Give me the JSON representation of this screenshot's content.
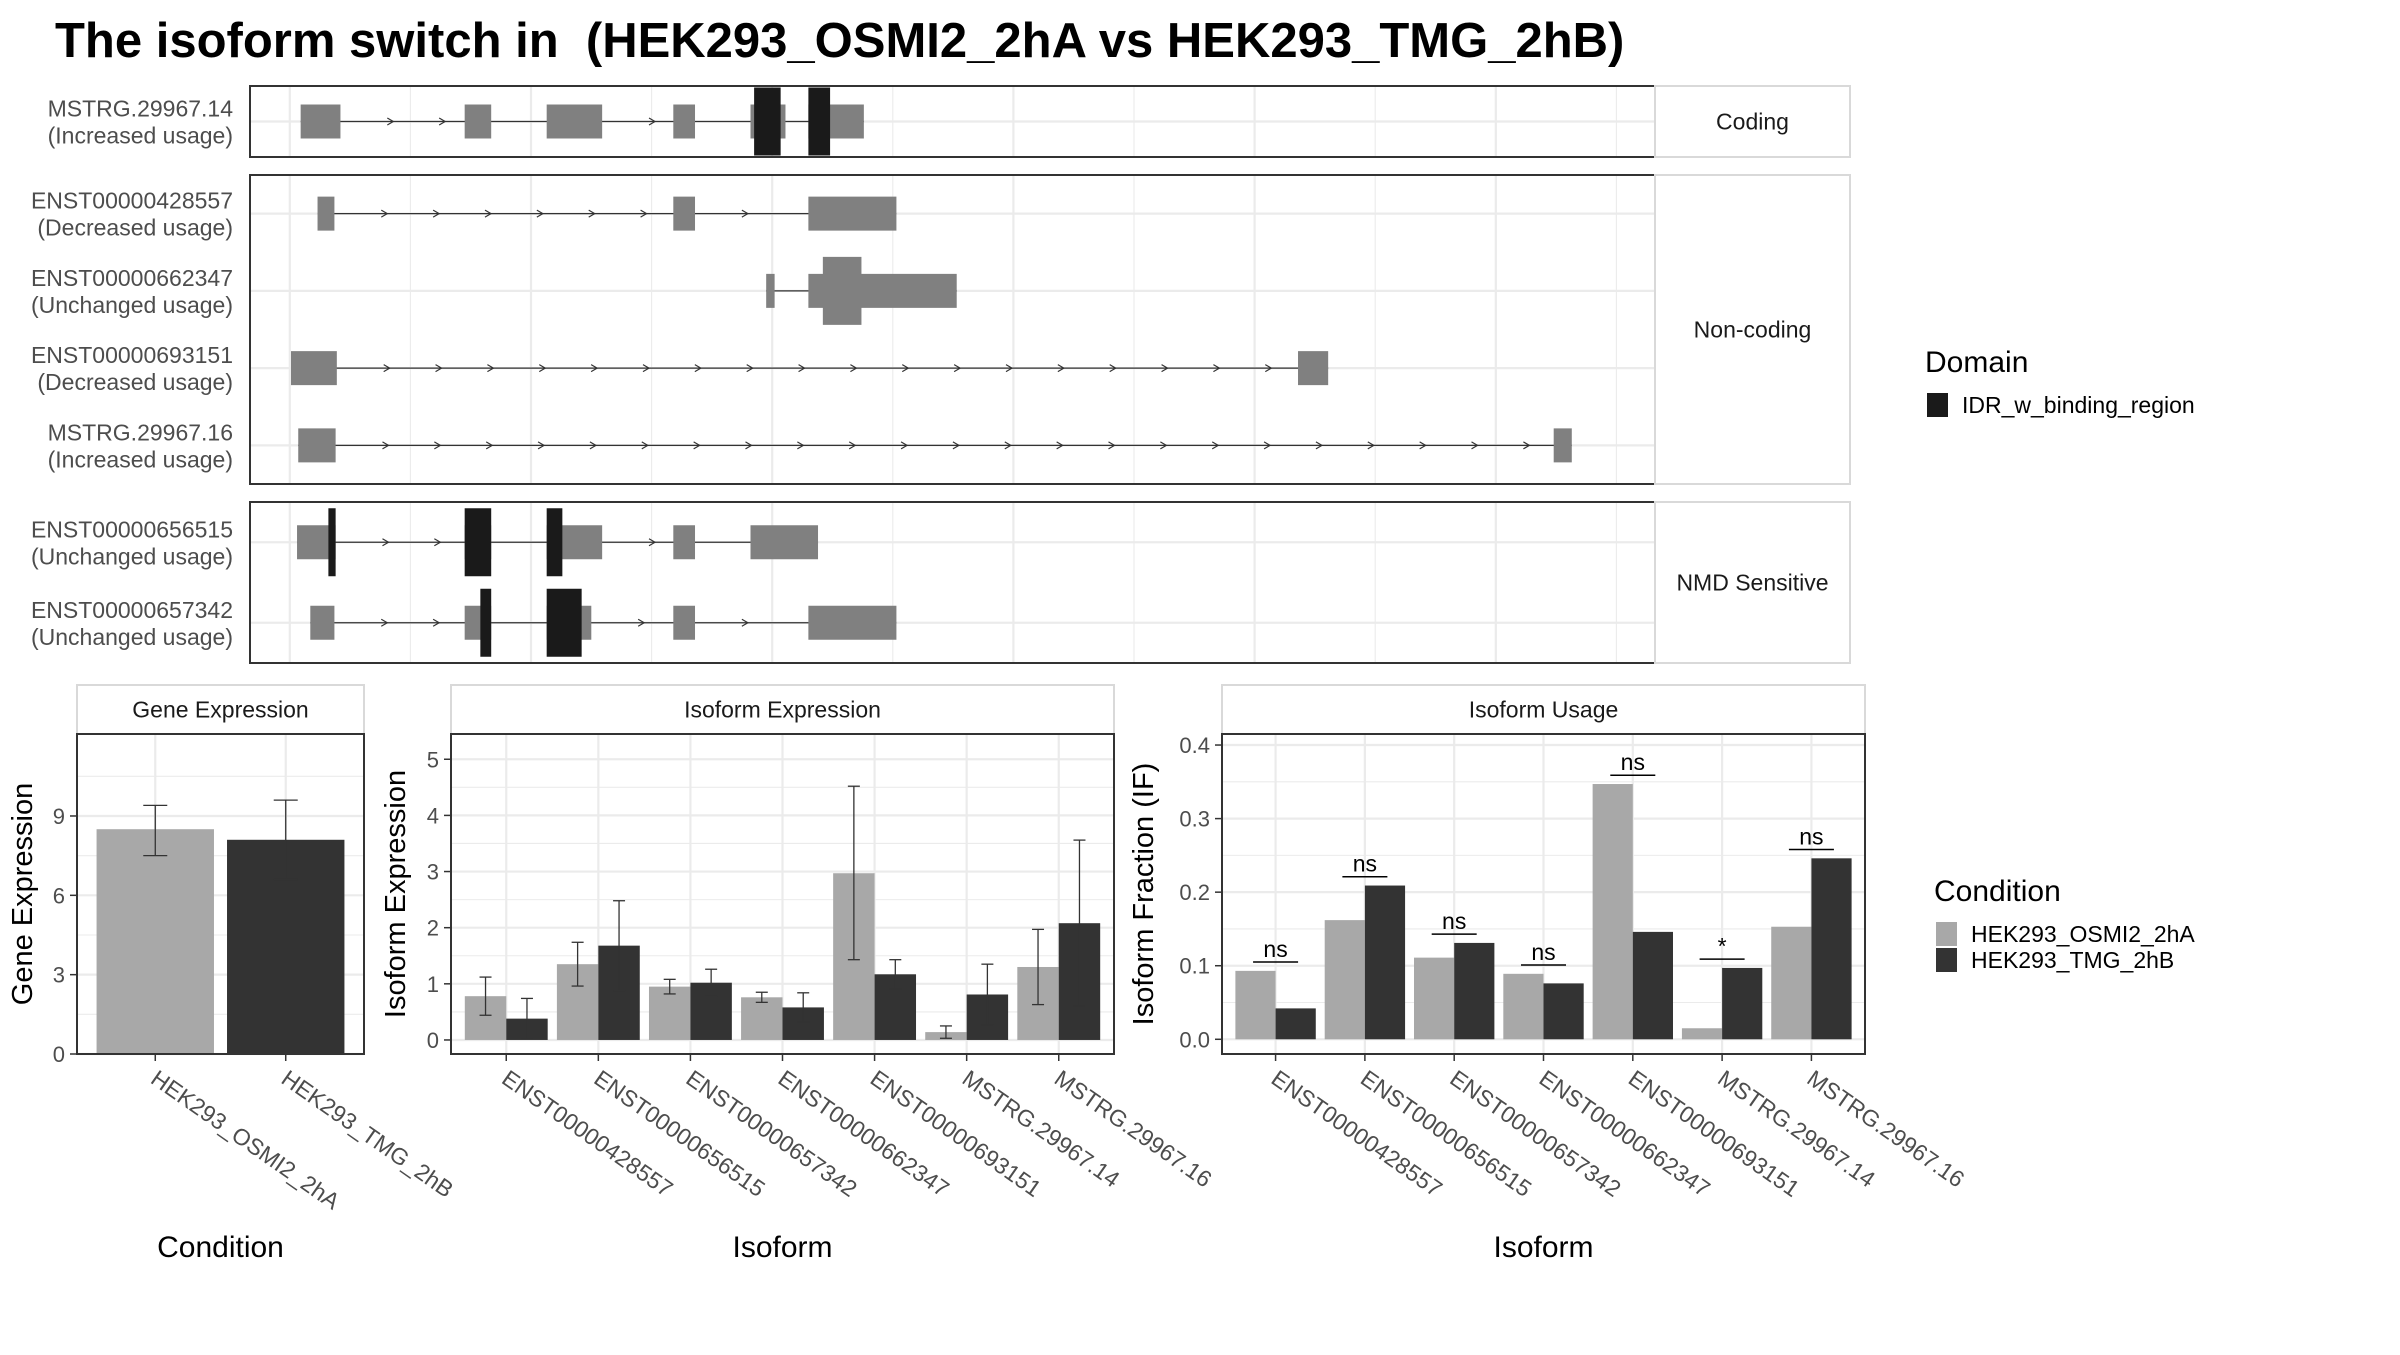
{
  "title": "The isoform switch in  (HEK293_OSMI2_2hA vs HEK293_TMG_2hB)",
  "colors": {
    "exon": "#808080",
    "domain": "#1a1a1a",
    "cond1": "#a8a8a8",
    "cond2": "#333333",
    "grid": "#ebebeb",
    "border": "#333333",
    "strip_border": "#d9d9d9"
  },
  "chart_data": [
    {
      "type": "transcript_structure",
      "domain_legend": {
        "title": "Domain",
        "entries": [
          "IDR_w_binding_region"
        ]
      },
      "groups": [
        {
          "label": "Coding",
          "transcripts": [
            {
              "name": "MSTRG.29967.14",
              "usage": "(Increased usage)",
              "exons": [
                [
                  0.9,
                  4.2
                ],
                [
                  14.5,
                  16.7
                ],
                [
                  21.3,
                  25.9
                ],
                [
                  31.8,
                  33.6
                ],
                [
                  38.2,
                  41.1
                ],
                [
                  43.0,
                  47.6
                ]
              ],
              "domains": [
                [
                  38.5,
                  40.7
                ],
                [
                  43.0,
                  44.8
                ]
              ],
              "start": 0.9,
              "end": 47.6
            }
          ]
        },
        {
          "label": "Non-coding",
          "transcripts": [
            {
              "name": "ENST00000428557",
              "usage": "(Decreased usage)",
              "exons": [
                [
                  2.3,
                  3.7
                ],
                [
                  31.8,
                  33.6
                ],
                [
                  43.0,
                  50.3
                ]
              ],
              "domains": [],
              "start": 2.3,
              "end": 50.3
            },
            {
              "name": "ENST00000662347",
              "usage": "(Unchanged usage)",
              "exons": [
                [
                  39.5,
                  40.2
                ],
                [
                  43.0,
                  48.4
                ],
                [
                  48.4,
                  55.3
                ]
              ],
              "thick": [
                [
                  44.2,
                  47.4
                ]
              ],
              "domains": [],
              "start": 39.5,
              "end": 55.3
            },
            {
              "name": "ENST00000693151",
              "usage": "(Decreased usage)",
              "exons": [
                [
                  0.1,
                  3.9
                ],
                [
                  83.6,
                  86.1
                ]
              ],
              "domains": [],
              "start": 0.1,
              "end": 86.1
            },
            {
              "name": "MSTRG.29967.16",
              "usage": "(Increased usage)",
              "exons": [
                [
                  0.7,
                  3.8
                ],
                [
                  104.8,
                  106.3
                ]
              ],
              "domains": [],
              "start": 0.7,
              "end": 106.3
            }
          ]
        },
        {
          "label": "NMD Sensitive",
          "transcripts": [
            {
              "name": "ENST00000656515",
              "usage": "(Unchanged usage)",
              "exons": [
                [
                  0.6,
                  3.8
                ],
                [
                  14.5,
                  16.7
                ],
                [
                  21.3,
                  25.9
                ],
                [
                  31.8,
                  33.6
                ],
                [
                  38.2,
                  43.8
                ]
              ],
              "domains": [
                [
                  3.2,
                  3.8
                ],
                [
                  14.5,
                  16.7
                ],
                [
                  21.3,
                  22.6
                ]
              ],
              "start": 0.6,
              "end": 43.8
            },
            {
              "name": "ENST00000657342",
              "usage": "(Unchanged usage)",
              "exons": [
                [
                  1.7,
                  3.7
                ],
                [
                  14.5,
                  16.7
                ],
                [
                  21.3,
                  25.0
                ],
                [
                  31.8,
                  33.6
                ],
                [
                  43.0,
                  50.3
                ]
              ],
              "domains": [
                [
                  15.8,
                  16.7
                ],
                [
                  21.3,
                  24.2
                ]
              ],
              "start": 1.7,
              "end": 50.3
            }
          ]
        }
      ]
    },
    {
      "type": "bar",
      "title": "Gene Expression",
      "xlabel": "Condition",
      "ylabel": "Gene Expression",
      "categories": [
        "HEK293_OSMI2_2hA",
        "HEK293_TMG_2hB"
      ],
      "values": [
        8.5,
        8.1
      ],
      "errors": [
        [
          7.5,
          9.4
        ],
        [
          6.6,
          9.6
        ]
      ],
      "ylim": [
        0,
        12.1
      ],
      "yticks": [
        0,
        3,
        6,
        9
      ]
    },
    {
      "type": "bar",
      "title": "Isoform Expression",
      "xlabel": "Isoform",
      "ylabel": "Isoform Expression",
      "categories": [
        "ENST00000428557",
        "ENST00000656515",
        "ENST00000657342",
        "ENST00000662347",
        "ENST00000693151",
        "MSTRG.29967.14",
        "MSTRG.29967.16"
      ],
      "series": [
        {
          "name": "HEK293_OSMI2_2hA",
          "values": [
            0.78,
            1.35,
            0.95,
            0.76,
            2.97,
            0.14,
            1.3
          ],
          "errors": [
            [
              0.44,
              1.12
            ],
            [
              0.96,
              1.74
            ],
            [
              0.82,
              1.08
            ],
            [
              0.67,
              0.85
            ],
            [
              1.43,
              4.52
            ],
            [
              0.03,
              0.25
            ],
            [
              0.63,
              1.97
            ]
          ]
        },
        {
          "name": "HEK293_TMG_2hB",
          "values": [
            0.38,
            1.68,
            1.02,
            0.58,
            1.17,
            0.81,
            2.08
          ],
          "errors": [
            [
              0.02,
              0.74
            ],
            [
              0.88,
              2.48
            ],
            [
              0.78,
              1.26
            ],
            [
              0.32,
              0.84
            ],
            [
              0.91,
              1.43
            ],
            [
              0.27,
              1.35
            ],
            [
              0.6,
              3.56
            ]
          ]
        }
      ],
      "ylim": [
        -0.25,
        5.45
      ],
      "yticks": [
        0,
        1,
        2,
        3,
        4,
        5
      ]
    },
    {
      "type": "bar",
      "title": "Isoform Usage",
      "xlabel": "Isoform",
      "ylabel": "Isoform Fraction (IF)",
      "categories": [
        "ENST00000428557",
        "ENST00000656515",
        "ENST00000657342",
        "ENST00000662347",
        "ENST00000693151",
        "MSTRG.29967.14",
        "MSTRG.29967.16"
      ],
      "series": [
        {
          "name": "HEK293_OSMI2_2hA",
          "values": [
            0.093,
            0.162,
            0.111,
            0.089,
            0.347,
            0.015,
            0.153
          ]
        },
        {
          "name": "HEK293_TMG_2hB",
          "values": [
            0.042,
            0.209,
            0.131,
            0.076,
            0.146,
            0.097,
            0.246
          ]
        }
      ],
      "significance": [
        "ns",
        "ns",
        "ns",
        "ns",
        "ns",
        "*",
        "ns"
      ],
      "ylim": [
        -0.02,
        0.415
      ],
      "yticks": [
        0.0,
        0.1,
        0.2,
        0.3,
        0.4
      ],
      "ytick_labels": [
        "0.0",
        "0.1",
        "0.2",
        "0.3",
        "0.4"
      ]
    }
  ],
  "condition_legend": {
    "title": "Condition",
    "entries": [
      "HEK293_OSMI2_2hA",
      "HEK293_TMG_2hB"
    ]
  }
}
